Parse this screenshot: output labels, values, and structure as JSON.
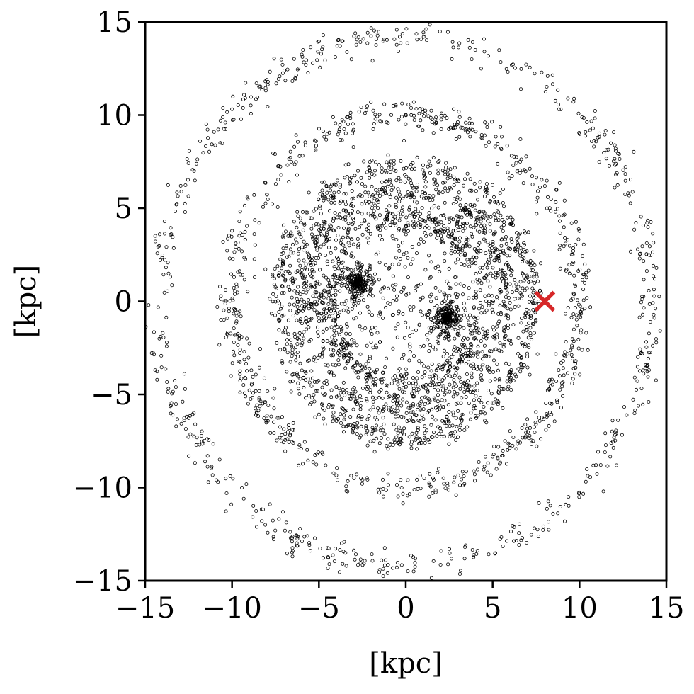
{
  "chart_data": {
    "type": "scatter",
    "title": "",
    "xlabel": "[kpc]",
    "ylabel": "[kpc]",
    "xlim": [
      -15,
      15
    ],
    "ylim": [
      -15,
      15
    ],
    "xticks": [
      -15,
      -10,
      -5,
      0,
      5,
      10,
      15
    ],
    "yticks": [
      -15,
      -10,
      -5,
      0,
      5,
      10,
      15
    ],
    "xtick_labels": [
      "−15",
      "−10",
      "−5",
      "0",
      "5",
      "10",
      "15"
    ],
    "ytick_labels": [
      "−15",
      "−10",
      "−5",
      "0",
      "5",
      "10",
      "15"
    ],
    "grid": false,
    "legend": "none",
    "series": [
      {
        "marker": "open-circle",
        "color": "#000000",
        "structure": {
          "rings": [
            {
              "radius": 4.4,
              "width": 0.9,
              "count": 900
            },
            {
              "radius": 5.9,
              "width": 1.0,
              "count": 1100
            },
            {
              "radius": 7.3,
              "width": 0.7,
              "count": 900
            },
            {
              "radius": 10.0,
              "width": 0.8,
              "count": 900
            },
            {
              "radius": 14.2,
              "width": 0.8,
              "count": 800
            }
          ],
          "clumps": [
            {
              "x": -2.8,
              "y": 1.0,
              "radius": 1.2,
              "count": 240
            },
            {
              "x": 2.4,
              "y": -0.9,
              "radius": 1.3,
              "count": 260
            }
          ],
          "core_sparse": {
            "radius": 3.2,
            "count": 160
          }
        }
      },
      {
        "marker": "x",
        "color": "#d62728",
        "points": [
          [
            8.0,
            0.0
          ]
        ]
      }
    ]
  }
}
